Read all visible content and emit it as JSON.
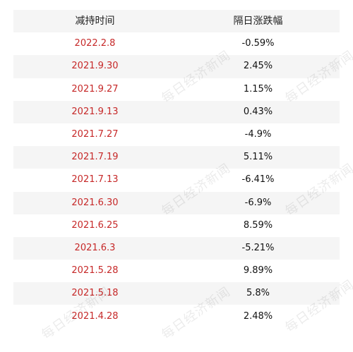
{
  "table": {
    "headers": [
      "减持时间",
      "隔日涨跌幅"
    ],
    "rows": [
      {
        "date": "2022.2.8",
        "change": "-0.59%"
      },
      {
        "date": "2021.9.30",
        "change": "2.45%"
      },
      {
        "date": "2021.9.27",
        "change": "1.15%"
      },
      {
        "date": "2021.9.13",
        "change": "0.43%"
      },
      {
        "date": "2021.7.27",
        "change": "-4.9%"
      },
      {
        "date": "2021.7.19",
        "change": "5.11%"
      },
      {
        "date": "2021.7.13",
        "change": "-6.41%"
      },
      {
        "date": "2021.6.30",
        "change": "-6.9%"
      },
      {
        "date": "2021.6.25",
        "change": "8.59%"
      },
      {
        "date": "2021.6.3",
        "change": "-5.21%"
      },
      {
        "date": "2021.5.28",
        "change": "9.89%"
      },
      {
        "date": "2021.5.18",
        "change": "5.8%"
      },
      {
        "date": "2021.4.28",
        "change": "2.48%"
      }
    ]
  },
  "watermark": "每日经济新闻",
  "colors": {
    "date_red": "#c62828",
    "stripe": "#f5f5f5"
  }
}
